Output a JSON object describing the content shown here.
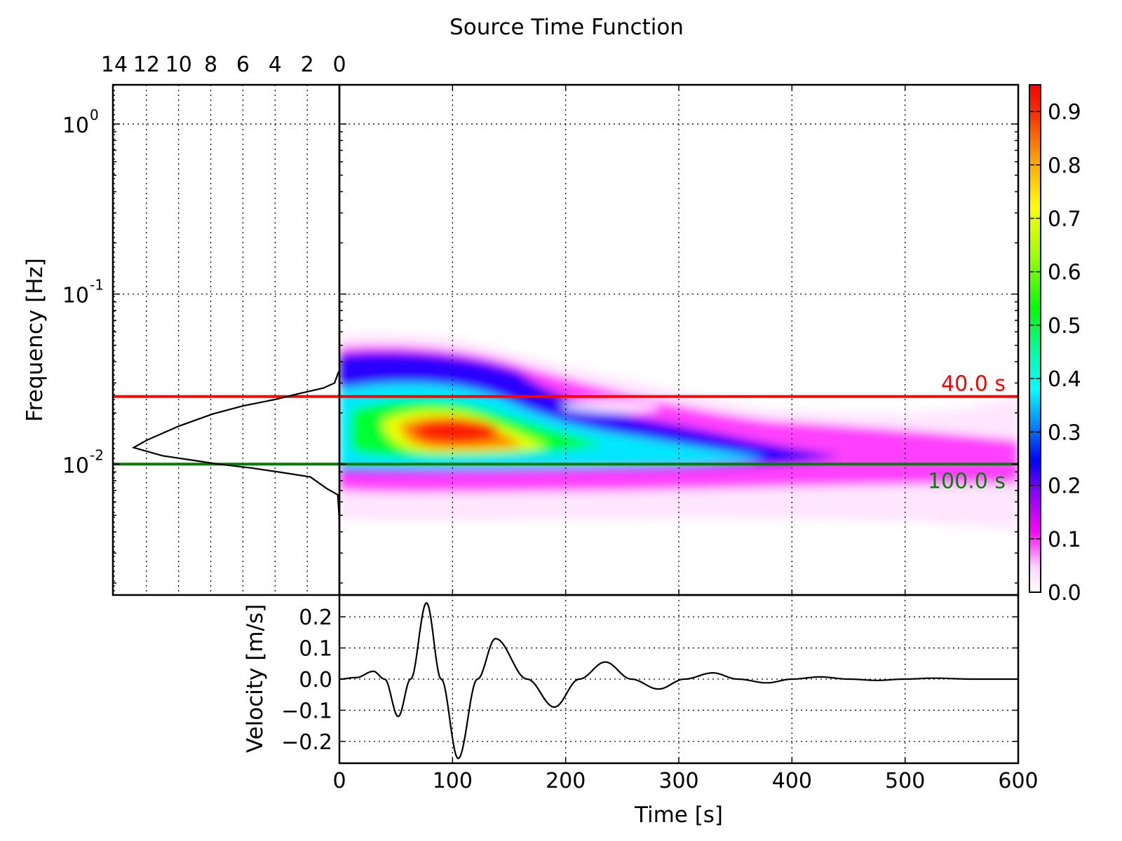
{
  "chart_data": [
    {
      "type": "heatmap",
      "title": "Source Time Function",
      "xlabel": "Time [s]",
      "ylabel": "Frequency [Hz]",
      "xlim": [
        0,
        600
      ],
      "ylim": [
        0.0017,
        1.7
      ],
      "yscale": "log",
      "x_ticks": [
        "0",
        "100",
        "200",
        "300",
        "400",
        "500",
        "600"
      ],
      "y_ticks": [
        {
          "value": 1,
          "base": "10",
          "exp": "0"
        },
        {
          "value": 0.1,
          "base": "10",
          "exp": "-1"
        },
        {
          "value": 0.01,
          "base": "10",
          "exp": "-2"
        }
      ],
      "grid": true,
      "colormap": "gist_ncar_r-like (white-magenta-blue-cyan-green-yellow-orange-red)",
      "clim": [
        0,
        0.95
      ],
      "colorbar_ticks": [
        "0.0",
        "0.1",
        "0.2",
        "0.3",
        "0.4",
        "0.5",
        "0.6",
        "0.7",
        "0.8",
        "0.9"
      ],
      "features": [
        {
          "peak_time_s": 100,
          "peak_freq_hz": 0.016,
          "peak_value": 0.95
        },
        {
          "band": "tail along ~0.01 Hz fading to 0 by 600 s"
        }
      ],
      "annotations": [
        {
          "text": "40.0 s",
          "freq_hz": 0.025,
          "color": "#ff0000"
        },
        {
          "text": "100.0 s",
          "freq_hz": 0.01,
          "color": "#008000"
        }
      ]
    },
    {
      "type": "line",
      "name": "frequency-spectrum",
      "top_axis_ticks": [
        "14",
        "12",
        "10",
        "8",
        "6",
        "4",
        "2",
        "0"
      ],
      "xlim_reversed": [
        14,
        0
      ],
      "points": [
        [
          0.05,
          0.035
        ],
        [
          0.3,
          0.03
        ],
        [
          1.0,
          0.028
        ],
        [
          2.5,
          0.026
        ],
        [
          4.0,
          0.024
        ],
        [
          6.0,
          0.022
        ],
        [
          7.9,
          0.0197
        ],
        [
          10.0,
          0.0167
        ],
        [
          12.0,
          0.0138
        ],
        [
          12.8,
          0.0125
        ],
        [
          11.0,
          0.0112
        ],
        [
          9.0,
          0.0105
        ],
        [
          7.5,
          0.01
        ],
        [
          5.5,
          0.0095
        ],
        [
          3.8,
          0.009
        ],
        [
          1.8,
          0.0084
        ],
        [
          0.8,
          0.0072
        ],
        [
          0.1,
          0.0066
        ],
        [
          0.02,
          0.005
        ],
        [
          0.0,
          0.0045
        ]
      ]
    },
    {
      "type": "line",
      "name": "velocity-trace",
      "xlabel": "Time [s]",
      "ylabel": "Velocity [m/s]",
      "xlim": [
        0,
        600
      ],
      "ylim": [
        -0.27,
        0.27
      ],
      "y_ticks": [
        {
          "value": 0.2,
          "label": "0.2"
        },
        {
          "value": 0.1,
          "label": "0.1"
        },
        {
          "value": 0.0,
          "label": "0.0"
        },
        {
          "value": -0.1,
          "label": "−0.1"
        },
        {
          "value": -0.2,
          "label": "−0.2"
        }
      ],
      "extrema": [
        [
          0,
          0.0
        ],
        [
          15,
          0.005
        ],
        [
          30,
          0.025
        ],
        [
          40,
          0.0
        ],
        [
          52,
          -0.12
        ],
        [
          63,
          0.0
        ],
        [
          77,
          0.245
        ],
        [
          90,
          0.0
        ],
        [
          105,
          -0.255
        ],
        [
          122,
          0.0
        ],
        [
          138,
          0.13
        ],
        [
          166,
          0.0
        ],
        [
          190,
          -0.09
        ],
        [
          212,
          0.0
        ],
        [
          235,
          0.055
        ],
        [
          258,
          0.0
        ],
        [
          282,
          -0.032
        ],
        [
          305,
          0.0
        ],
        [
          330,
          0.02
        ],
        [
          352,
          0.0
        ],
        [
          378,
          -0.012
        ],
        [
          400,
          0.0
        ],
        [
          425,
          0.007
        ],
        [
          450,
          0.0
        ],
        [
          475,
          -0.004
        ],
        [
          500,
          0.0
        ],
        [
          525,
          0.003
        ],
        [
          560,
          0.0
        ],
        [
          600,
          0.0
        ]
      ]
    }
  ]
}
